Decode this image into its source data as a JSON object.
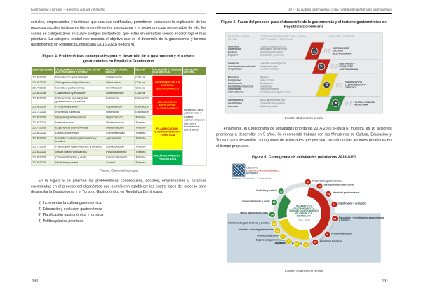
{
  "colors": {
    "semaforo_rojo": "#FF0000",
    "semaforo_amarillo": "#FFFF00",
    "semaforo_verde": "#00B050",
    "tabla_header_verde": "#77933C",
    "figura_ribbon_rojo": "#C02418",
    "figura_ribbon_amarillo": "#E8D20F",
    "figura_ribbon_verde": "#2E8B42"
  },
  "left_page": {
    "running_header": "Gastronomía y turismo — Destinos con sal y pimienta",
    "paragraph1": "sociales, empresariales y turísticas que una vez codificadas, permitieron establecer la explicación de los procesos sociales básicos en términos relevantes a solucionar y el sector principal responsable de ello, los cuales se categorizaron en cuatro códigos sustantivos, que están en semáforo siendo el color rojo el más prioritario. La categoría central nos muestra el objetivo que es el desarrollo de la gastronomía y turismo gastronómico en República Dominicana (2016-2020) (Figura 4).",
    "figura4_title": "Figura 4: Problemáticas conceptuales para el desarrollo de la gastronomía y el turismo gastronómico en República Dominicana",
    "table": {
      "headers": [
        "LÍNEA DE TIEMPO",
        "PROBLEMÁTICA CONCEPTUAL DE LA GASTRONOMÍA Y TURISMO",
        "PROCESO SOCIAL BÁSICO",
        "SECTOR",
        "CATEGORÍA Y CÓDIGOS SUSTANTIVOS",
        "CATEGORÍA CENTRAL"
      ],
      "rows": [
        {
          "periodo": "2016-2020",
          "problema": "Preparación gastronómica",
          "proceso": "Culturización",
          "sector": "Cultura"
        },
        {
          "periodo": "2016-2020",
          "problema": "Salvaguarda del patrimonio",
          "proceso": "Valorización",
          "sector": "Cultura"
        },
        {
          "periodo": "2017-2020",
          "problema": "Identidad gastronómica",
          "proceso": "Identificación",
          "sector": "Cultura"
        },
        {
          "periodo": "2016-2018",
          "problema": "Clasificación y evolución",
          "proceso": "Ordenamiento",
          "sector": "Cultura"
        },
        {
          "periodo": "2016-2020",
          "problema": "Educación e investigación gastronómica y turística",
          "proceso": "Formación",
          "sector": "Educación"
        },
        {
          "periodo": "2016-2020",
          "problema": "Profesionalización",
          "proceso": "Capacitación",
          "sector": "Educación"
        },
        {
          "periodo": "2017-2020",
          "problema": "Incentivos turísticos",
          "proceso": "Motivación",
          "sector": "Educación"
        },
        {
          "periodo": "2016-2020",
          "problema": "Mipymes gastronómicas",
          "proceso": "Organización",
          "sector": "Turismo"
        },
        {
          "periodo": "2016-2020",
          "problema": "Infraestructura",
          "proceso": "Modernización",
          "sector": "Turismo"
        },
        {
          "periodo": "2017-2020",
          "problema": "Experiencia gastronómica",
          "proceso": "Diferenciación",
          "sector": "Turismo"
        },
        {
          "periodo": "2016-2020",
          "problema": "Diseño competitivo",
          "proceso": "Competitividad",
          "sector": "Turismo"
        },
        {
          "periodo": "2016-2020",
          "problema": "Identidad cultural gastronómica y turística",
          "proceso": "Apropiación",
          "sector": "Turismo"
        },
        {
          "periodo": "2017-2020",
          "problema": "Planificación gastronómica y turística",
          "proceso": "Estructuración",
          "sector": "Turismo"
        },
        {
          "periodo": "2016-2020",
          "problema": "Marca gastronómica país",
          "proceso": "Posicionamiento",
          "sector": "Turismo"
        },
        {
          "periodo": "2016-2020",
          "problema": "Comercialización y venta",
          "proceso": "Comercialización",
          "sector": "Turismo"
        },
        {
          "periodo": "2016-2020",
          "problema": "Medición y control",
          "proceso": "Control",
          "sector": "Turismo"
        }
      ],
      "blocks": [
        {
          "start": 0,
          "span": 4,
          "label": "INCREMENTAR LA CULTURA GASTRONÓMICA",
          "bg": "#FF0000",
          "fg": "#FFE800"
        },
        {
          "start": 4,
          "span": 3,
          "label": "EDUCACIÓN Y EVOLUCIÓN GASTRONÓMICA",
          "bg": "#FF0000",
          "fg": "#FFE800"
        },
        {
          "start": 7,
          "span": 6,
          "label": "PLANIFICACIÓN GASTRONÓMICA Y TURÍSTICA",
          "bg": "#FFFF00",
          "fg": "#C00000"
        },
        {
          "start": 13,
          "span": 3,
          "label": "POLÍTICA PÚBLICA PRIORITARIA",
          "bg": "#00B050",
          "fg": "#FFFFFF"
        }
      ],
      "categoria_central": "Desarrollo de la gastronomía y turismo gastronómico en República Dominicana (2016-2020)"
    },
    "fuente": "Fuente: Elaboración propia",
    "paragraph2": "En la Figura 5 se plasman las problemáticas conceptuales, sociales, empresariales y turísticas encontradas en el proceso del diagnóstico que permitieron establecer las cuatro fases del proceso para desarrollar la Gastronomía y el Turismo Gastronómico en República Dominicana",
    "phases": [
      "1) Incrementar la cultura gastronómica",
      "2) Educación y evolución gastronómica",
      "3) Planificación gastronómica y turística",
      "4) Política pública prioritaria"
    ],
    "page_number": "190"
  },
  "right_page": {
    "running_header": "13 — La cultura gastronómica como condimento del turismo gastronómico",
    "figura5_title": "Figura 5: Fases del proceso para el desarrollo de la gastronomía y el turismo gastronómico en República Dominicana",
    "figura5": {
      "headers": [
        "PROCESO SOCIAL ACTUAL",
        "PROBLEMÁTICA CONCEPTUAL, SOCIAL, EMPRESARIAL Y TURÍSTICA",
        "FASES DEL PROCESO"
      ],
      "bands": [
        {
          "num": "01",
          "fase": "INCREMENTAR CULTURA GASTRONÓMICA",
          "color": "#C02418",
          "icon_glyph": "♨",
          "icon_name": "gastronomy-icon",
          "proceso_social": [
            "Ignorancia",
            "Indiferencia",
            "Rechazo",
            "Negación"
          ],
          "problematica": [
            "Preparación gastronómica",
            "Salvaguarda del patrimonio",
            "Identidad gastronómica",
            "Clasificación y evolución"
          ]
        },
        {
          "num": "02",
          "fase": "EDUCACIÓN Y EVOLUCIÓN GASTRONÓMICA",
          "color": "#C02418",
          "icon_glyph": "✎",
          "icon_name": "education-icon",
          "proceso_social": [
            "Involución",
            "Crecimiento desordenado",
            "Irregularidad"
          ],
          "problematica": [
            "Educación e investigación",
            "Profesionalización",
            "Incentivos turísticos"
          ]
        },
        {
          "num": "03",
          "fase": "PLANIFICACIÓN GASTRONÓMICA Y TURÍSTICA",
          "color": "#E8D20F",
          "icon_glyph": "⚙",
          "icon_name": "planning-gear-icon",
          "proceso_social": [
            "Mercadeo",
            "Denigración",
            "Incoherencia",
            "Inestabilidad financiera",
            "Informalidad",
            "Intermediación"
          ],
          "problematica": [
            "Mipymes",
            "Infraestructura",
            "Gastronomía",
            "Experiencia",
            "Diseño competitivo",
            "Identidad cultural gastronómica"
          ]
        },
        {
          "num": "04",
          "fase": "POLÍTICA PÚBLICA PRIORITARIA",
          "color": "#2E8B42",
          "icon_glyph": "⚑",
          "icon_name": "policy-flag-icon",
          "proceso_social": [
            "Inconsistencia",
            "Inestabilidad",
            "Anarquía"
          ],
          "problematica": [
            "Marca gastronómica país",
            "Comercialización y venta",
            "Medición y control"
          ]
        }
      ]
    },
    "fuente5": "Fuente: Elaboración propia",
    "paragraph1": "Finalmente, el Cronograma de actividades prioritarias 2016-2020 (Figura 6) muestra las 16 acciones prioritarias a desarrollar en 5 años. Se recomendó trabajar con los Ministerios de Cultura, Educación y Turismo para desarrollar cronogramas de actividades que permitan cumplir con las acciones prioritarias en el tiempo propuesto.",
    "figura6_title": "Figura 6: Cronograma de actividades prioritarias 2016-2020",
    "figura6": {
      "logo": {
        "line1": "CEGAHO",
        "line2": "CONSULTORÍA GASTRONÓMICA",
        "line3": "HOTELERA",
        "tagline": "Asesoría · Consultoría · Capacitación"
      },
      "center_title": "Desarrollo gastronómico y turismo gastronómico en República Dominicana",
      "center_years": "2016 - 2020",
      "items": [
        {
          "num": "01",
          "label": "Preparación gastronómica",
          "color": "#C02418"
        },
        {
          "num": "02",
          "label": "Salvaguarda del patrimonio",
          "color": "#C02418"
        },
        {
          "num": "03",
          "label": "Identidad gastronómica",
          "color": "#C02418"
        },
        {
          "num": "04",
          "label": "Clasificación y evolución",
          "color": "#C02418"
        },
        {
          "num": "05",
          "label": "Educación e investigación gastronómica y turística",
          "color": "#C02418"
        },
        {
          "num": "06",
          "label": "Profesionalización",
          "color": "#C02418"
        },
        {
          "num": "07",
          "label": "Incentivos turísticos",
          "color": "#C02418"
        },
        {
          "num": "08",
          "label": "Mipymes gastronómicas",
          "color": "#D9C400"
        },
        {
          "num": "09",
          "label": "Infraestructura",
          "color": "#D9C400"
        },
        {
          "num": "10",
          "label": "Experiencia gastronómica",
          "color": "#D9C400"
        },
        {
          "num": "11",
          "label": "Diseño competitivo",
          "color": "#D9C400"
        },
        {
          "num": "12",
          "label": "Identidad cultural gastronómica",
          "color": "#D9C400"
        },
        {
          "num": "13",
          "label": "Planificación gastronómica y turística",
          "color": "#D9C400"
        },
        {
          "num": "14",
          "label": "Marca gastronómica país",
          "color": "#2E8B42"
        },
        {
          "num": "15",
          "label": "Comercialización y venta",
          "color": "#2E8B42"
        },
        {
          "num": "16",
          "label": "Medición y control",
          "color": "#2E8B42"
        }
      ]
    },
    "fuente6": "Fuente: Elaboración propia",
    "page_number": "191"
  }
}
